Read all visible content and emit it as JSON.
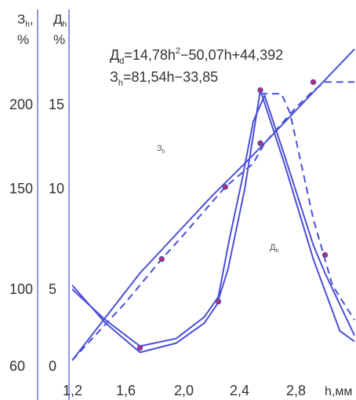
{
  "chart_data": {
    "type": "line",
    "left_axis": {
      "label_top": "З",
      "label_sub": "h",
      "label_tail": ",",
      "unit": "%",
      "ticks": [
        "60",
        "100",
        "150",
        "200"
      ],
      "range": [
        60,
        240
      ]
    },
    "right_axis": {
      "label_top": "Д",
      "label_sub": "h",
      "unit": "%",
      "ticks": [
        "0",
        "5",
        "10",
        "15"
      ],
      "range": [
        0,
        18.2
      ]
    },
    "x_axis": {
      "label": "h,мм",
      "ticks": [
        "1,2",
        "1,6",
        "2,0",
        "2,4",
        "2,8"
      ],
      "range": [
        1.2,
        3.2
      ]
    },
    "equations": [
      {
        "parts": [
          "Д",
          "d",
          "=14,78h",
          "2",
          "−50,07h+44,392"
        ]
      },
      {
        "parts": [
          "З",
          "h",
          "=81,54h−33,85"
        ]
      }
    ],
    "curve_labels": [
      {
        "text": "З",
        "sub": "h"
      },
      {
        "text": "Д",
        "sub": "h"
      }
    ],
    "series": [
      {
        "line": "solid",
        "axis": "left",
        "points": [
          [
            1.2,
            63
          ],
          [
            1.7,
            108
          ],
          [
            2.2,
            146
          ],
          [
            2.44,
            165
          ],
          [
            2.58,
            177
          ],
          [
            3.2,
            232
          ]
        ]
      },
      {
        "line": "dashed",
        "axis": "left",
        "points": [
          [
            1.2,
            63
          ],
          [
            1.6,
            93
          ],
          [
            1.85,
            115
          ],
          [
            2.0,
            127
          ],
          [
            2.3,
            151
          ],
          [
            2.5,
            165
          ],
          [
            2.58,
            177
          ],
          [
            2.8,
            198
          ],
          [
            2.92,
            208
          ],
          [
            3.0,
            213
          ],
          [
            3.2,
            213
          ]
        ]
      },
      {
        "line": "solid",
        "axis": "right",
        "points": [
          [
            1.2,
            5.2
          ],
          [
            1.45,
            2.8
          ],
          [
            1.7,
            0.9
          ],
          [
            1.95,
            1.5
          ],
          [
            2.15,
            2.8
          ],
          [
            2.24,
            4.0
          ],
          [
            2.32,
            6.0
          ],
          [
            2.44,
            10.0
          ],
          [
            2.55,
            15.8
          ],
          [
            2.72,
            11.5
          ],
          [
            2.92,
            6.5
          ],
          [
            3.1,
            2.3
          ],
          [
            3.2,
            1.6
          ]
        ]
      },
      {
        "line": "solid",
        "axis": "right",
        "points": [
          [
            1.2,
            5.0
          ],
          [
            1.45,
            3.0
          ],
          [
            1.7,
            1.3
          ],
          [
            1.95,
            1.8
          ],
          [
            2.15,
            3.2
          ],
          [
            2.25,
            4.5
          ],
          [
            2.33,
            7.5
          ],
          [
            2.42,
            10.5
          ],
          [
            2.5,
            14.0
          ],
          [
            2.58,
            15.5
          ],
          [
            2.72,
            12.0
          ],
          [
            2.92,
            7.2
          ],
          [
            3.0,
            5.8
          ],
          [
            3.2,
            2.0
          ]
        ]
      },
      {
        "line": "dashed",
        "axis": "right",
        "points": [
          [
            2.55,
            15.6
          ],
          [
            2.7,
            15.6
          ],
          [
            2.76,
            14.5
          ],
          [
            2.85,
            11.0
          ],
          [
            2.92,
            8.5
          ],
          [
            3.05,
            5.2
          ],
          [
            3.2,
            3.0
          ]
        ]
      }
    ],
    "markers": [
      {
        "axis": "right",
        "x": 1.7,
        "y": 1.2
      },
      {
        "axis": "right",
        "x": 2.25,
        "y": 4.2
      },
      {
        "axis": "right",
        "x": 2.55,
        "y": 15.8
      },
      {
        "axis": "right",
        "x": 3.0,
        "y": 6.7
      },
      {
        "axis": "left",
        "x": 1.85,
        "y": 115
      },
      {
        "axis": "left",
        "x": 2.3,
        "y": 151
      },
      {
        "axis": "left",
        "x": 2.55,
        "y": 177
      },
      {
        "axis": "left",
        "x": 2.92,
        "y": 213
      }
    ],
    "colors": {
      "line": "#4a50d6",
      "axis": "#4a50d6",
      "marker": "#b0306a",
      "text": "#333333"
    },
    "grid": false,
    "legend": "none"
  }
}
